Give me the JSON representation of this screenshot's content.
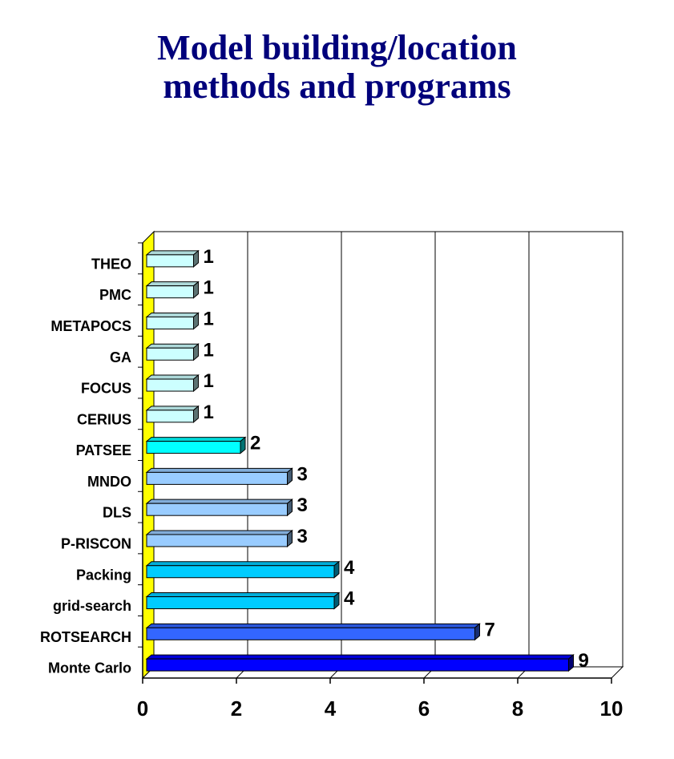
{
  "chart_data": {
    "type": "bar",
    "orientation": "horizontal",
    "title_lines": [
      "Model building/location",
      "methods and programs"
    ],
    "categories": [
      "THEO",
      "PMC",
      "METAPOCS",
      "GA",
      "FOCUS",
      "CERIUS",
      "PATSEE",
      "MNDO",
      "DLS",
      "P-RISCON",
      "Packing",
      "grid-search",
      "ROTSEARCH",
      "Monte Carlo"
    ],
    "values": [
      1,
      1,
      1,
      1,
      1,
      1,
      2,
      3,
      3,
      3,
      4,
      4,
      7,
      9
    ],
    "value_labels": [
      "1",
      "1",
      "1",
      "1",
      "1",
      "1",
      "2",
      "3",
      "3",
      "3",
      "4",
      "4",
      "7",
      "9"
    ],
    "bar_colors": [
      "#ccffff",
      "#ccffff",
      "#ccffff",
      "#ccffff",
      "#ccffff",
      "#ccffff",
      "#00ffff",
      "#99ccff",
      "#99ccff",
      "#99ccff",
      "#00ccff",
      "#00ccff",
      "#3366ff",
      "#0000ff"
    ],
    "x_ticks": [
      "0",
      "2",
      "4",
      "6",
      "8",
      "10"
    ],
    "xlim": [
      0,
      10
    ],
    "xlabel": "",
    "ylabel": "",
    "grid": "vertical major gridlines",
    "legend": "none",
    "side_wall_color": "#ffff00"
  }
}
